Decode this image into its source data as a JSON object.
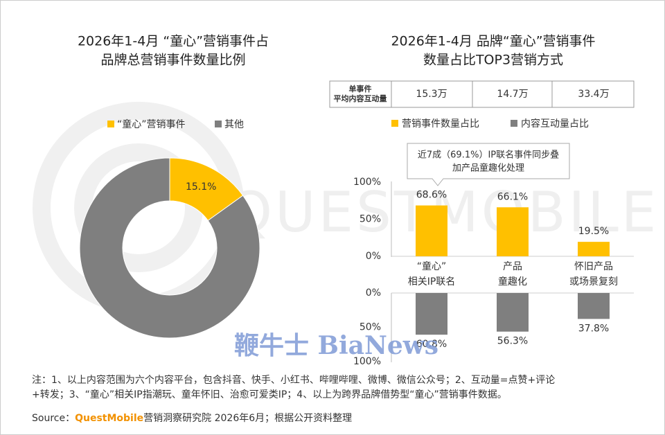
{
  "chart_data": [
    {
      "type": "pie",
      "title": [
        "2026年1-4月 “童心”营销事件占",
        "品牌总营销事件数量比例"
      ],
      "categories": [
        "“童心”营销事件",
        "其他"
      ],
      "values": [
        15.1,
        84.9
      ],
      "value_labels": [
        "15.1%",
        null
      ],
      "colors": [
        "#ffc000",
        "#7f7f7f"
      ],
      "legend": "top"
    },
    {
      "type": "bar",
      "title": [
        "2026年1-4月 品牌“童心”营销事件",
        "数量占比TOP3营销方式"
      ],
      "table": {
        "label": [
          "单事件",
          "平均内容互动量"
        ],
        "cells": [
          "15.3万",
          "14.7万",
          "33.4万"
        ]
      },
      "annotation": [
        "近7成（69.1%）IP联名事件同步叠",
        "加产品童趣化处理"
      ],
      "categories": [
        [
          "“童心”",
          "相关IP联名"
        ],
        [
          "产品",
          "童趣化"
        ],
        [
          "怀旧产品",
          "或场景复刻"
        ]
      ],
      "series": [
        {
          "name": "营销事件数量占比",
          "color": "#ffc000",
          "values": [
            68.6,
            66.1,
            19.5
          ],
          "value_labels": [
            "68.6%",
            "66.1%",
            "19.5%"
          ]
        },
        {
          "name": "内容互动量占比",
          "color": "#7f7f7f",
          "axis": "y2",
          "values": [
            60.8,
            56.3,
            37.8
          ],
          "value_labels": [
            "60.8%",
            "56.3%",
            "37.8%"
          ]
        }
      ],
      "ylim": [
        0,
        100
      ],
      "yticks": [
        {
          "value": 0,
          "label": "0%"
        },
        {
          "value": 50,
          "label": "50%"
        },
        {
          "value": 100,
          "label": "100%"
        }
      ],
      "y2lim": [
        0,
        100
      ],
      "y2ticks": [
        {
          "value": 0,
          "label": "0%"
        },
        {
          "value": 50,
          "label": "50%"
        },
        {
          "value": 100,
          "label": "100%"
        }
      ],
      "legend": "top"
    }
  ],
  "note": [
    "注：1、以上内容范围为六个内容平台，包含抖音、快手、小红书、哔哩哔哩、微博、微信公众号；2、互动量=点赞+评论",
    "+转发；3、“童心”相关IP指潮玩、童年怀旧、治愈可爱类IP；4、以上为跨界品牌借势型“童心”营销事件数据。"
  ],
  "source": [
    "Source：",
    "QuestMobile",
    "营销洞察研究院 2026年6月；根据公开资料整理"
  ],
  "watermarks": [
    "QUESTMOBILE",
    "鞭牛士 BiaNews"
  ]
}
